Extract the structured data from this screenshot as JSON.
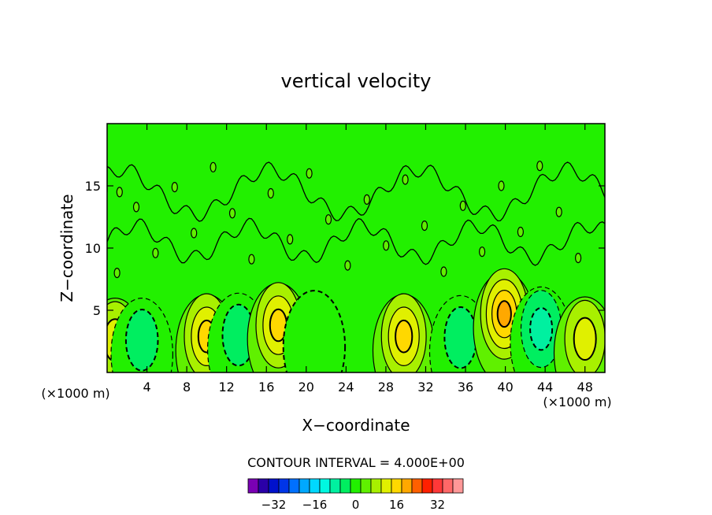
{
  "chart_data": {
    "type": "contour",
    "title": "vertical velocity",
    "xlabel": "X−coordinate",
    "ylabel": "Z−coordinate",
    "x_unit": "(×1000 m)",
    "z_unit": "(×1000 m)",
    "xlim": [
      0,
      50
    ],
    "ylim": [
      0,
      20
    ],
    "x_ticks": [
      {
        "value": 4,
        "label": "4"
      },
      {
        "value": 8,
        "label": "8"
      },
      {
        "value": 12,
        "label": "12"
      },
      {
        "value": 16,
        "label": "16"
      },
      {
        "value": 20,
        "label": "20"
      },
      {
        "value": 24,
        "label": "24"
      },
      {
        "value": 28,
        "label": "28"
      },
      {
        "value": 32,
        "label": "32"
      },
      {
        "value": 36,
        "label": "36"
      },
      {
        "value": 40,
        "label": "40"
      },
      {
        "value": 44,
        "label": "44"
      },
      {
        "value": 48,
        "label": "48"
      }
    ],
    "y_ticks": [
      {
        "value": 5,
        "label": "5"
      },
      {
        "value": 10,
        "label": "10"
      },
      {
        "value": 15,
        "label": "15"
      }
    ],
    "contour_interval_text": "CONTOUR INTERVAL = 4.000E+00",
    "contour_interval": 4,
    "background_color": "#22f000",
    "features": [
      {
        "x": 0.8,
        "z": 2.6,
        "w": 9
      },
      {
        "x": 3.5,
        "z": 2.6,
        "w": -5
      },
      {
        "x": 10.0,
        "z": 2.9,
        "w": 14
      },
      {
        "x": 13.2,
        "z": 3.0,
        "w": -7
      },
      {
        "x": 17.2,
        "z": 3.8,
        "w": 12
      },
      {
        "x": 20.8,
        "z": 3.2,
        "w": -3
      },
      {
        "x": 29.8,
        "z": 2.9,
        "w": 14
      },
      {
        "x": 35.5,
        "z": 2.8,
        "w": -7
      },
      {
        "x": 39.9,
        "z": 4.7,
        "w": 18
      },
      {
        "x": 43.6,
        "z": 3.5,
        "w": -9
      },
      {
        "x": 48.0,
        "z": 2.7,
        "w": 8
      }
    ],
    "colorbar": {
      "colors": [
        "#7a00b4",
        "#2a00a8",
        "#0011cc",
        "#0035e8",
        "#0070ff",
        "#00a8ff",
        "#00d8ff",
        "#00f8e0",
        "#00f0a0",
        "#00ee60",
        "#22f000",
        "#60f000",
        "#a8f000",
        "#e0f000",
        "#ffd800",
        "#ffa800",
        "#ff6000",
        "#ff2000",
        "#ff3838",
        "#ff6868",
        "#ff9898"
      ],
      "tick_values": [
        -32,
        -16,
        0,
        16,
        32
      ],
      "tick_labels": [
        "−32",
        "−16",
        "0",
        "16",
        "32"
      ],
      "min": -42,
      "max": 42
    }
  }
}
